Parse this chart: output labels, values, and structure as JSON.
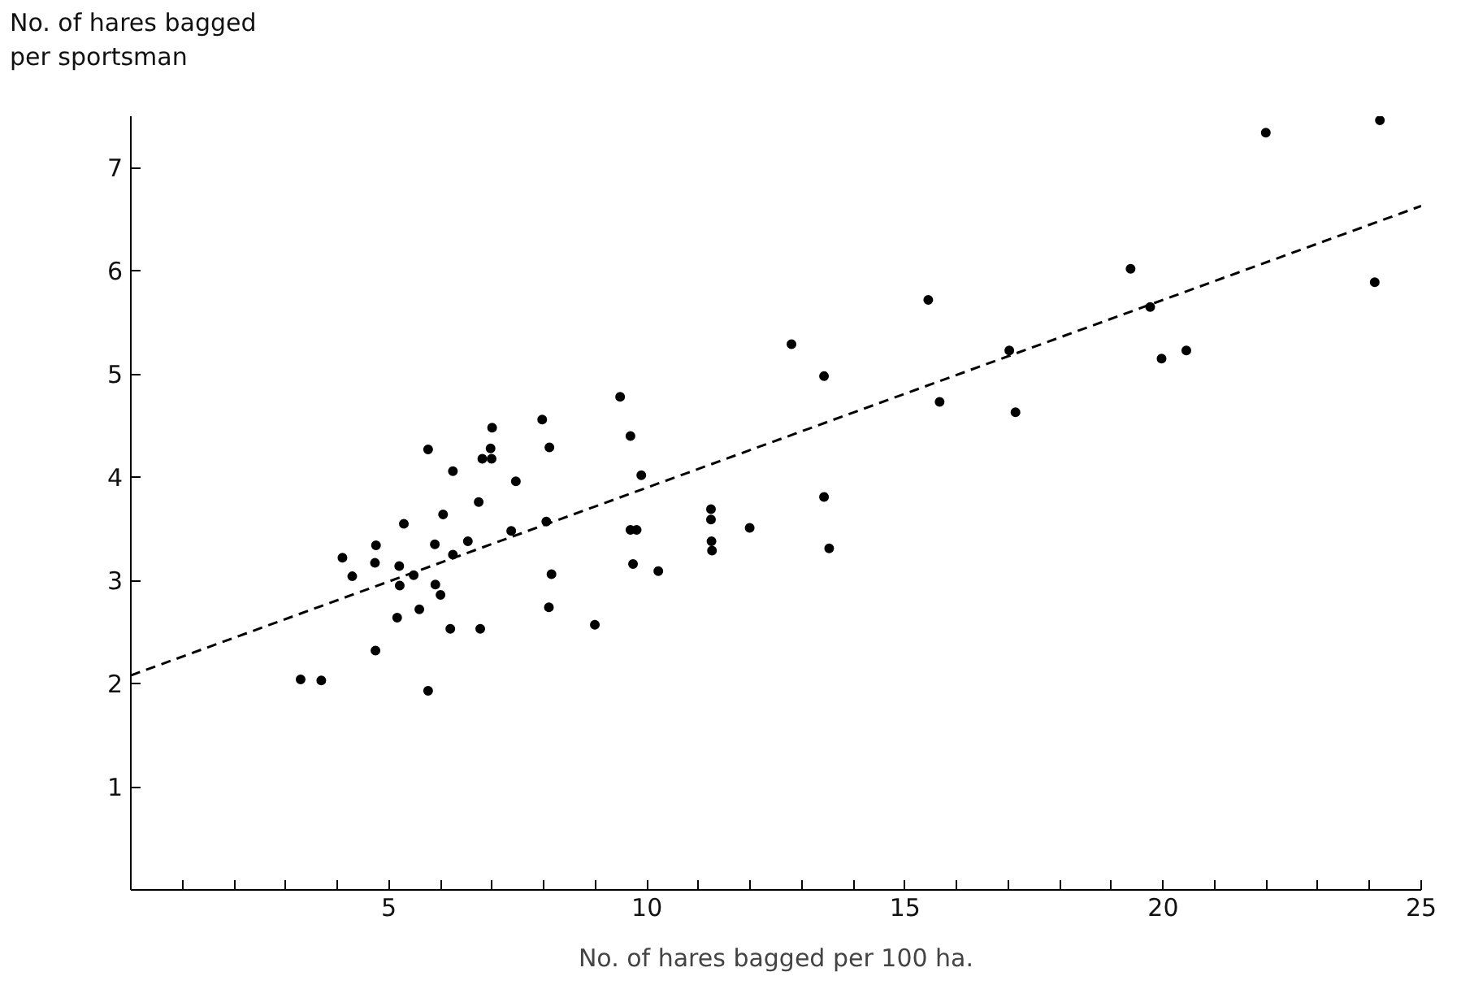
{
  "chart_data": {
    "type": "scatter",
    "xlabel": "No. of hares bagged per 100 ha.",
    "ylabel": "No. of hares bagged\nper sportsman",
    "xlim": [
      0,
      25
    ],
    "ylim": [
      0,
      7.5
    ],
    "xticks": [
      {
        "value": 1,
        "label": null
      },
      {
        "value": 2,
        "label": null
      },
      {
        "value": 3,
        "label": null
      },
      {
        "value": 4,
        "label": null
      },
      5,
      {
        "value": 6,
        "label": null
      },
      {
        "value": 7,
        "label": null
      },
      {
        "value": 8,
        "label": null
      },
      {
        "value": 9,
        "label": null
      },
      10,
      {
        "value": 11,
        "label": null
      },
      {
        "value": 12,
        "label": null
      },
      {
        "value": 13,
        "label": null
      },
      {
        "value": 14,
        "label": null
      },
      15,
      {
        "value": 16,
        "label": null
      },
      {
        "value": 17,
        "label": null
      },
      {
        "value": 18,
        "label": null
      },
      {
        "value": 19,
        "label": null
      },
      20,
      {
        "value": 21,
        "label": null
      },
      {
        "value": 22,
        "label": null
      },
      {
        "value": 23,
        "label": null
      },
      {
        "value": 24,
        "label": null
      },
      25
    ],
    "yticks": [
      1,
      2,
      3,
      4,
      5,
      6,
      7
    ],
    "grid": false,
    "legend": false,
    "series": [
      {
        "marker": "circle",
        "color": "#000000",
        "x": [
          7.97,
          7.0,
          5.76,
          6.97,
          8.11,
          6.81,
          6.99,
          6.24,
          7.46,
          6.74,
          6.05,
          5.29,
          8.05,
          7.37,
          4.75,
          5.89,
          6.53,
          4.1,
          4.73,
          6.24,
          5.2,
          4.29,
          5.48,
          5.21,
          5.9,
          8.15,
          6.0,
          5.59,
          8.1,
          5.16,
          6.19,
          6.77,
          8.99,
          4.74,
          3.29,
          3.69,
          5.76,
          12.8,
          9.48,
          13.43,
          9.68,
          9.89,
          11.24,
          11.24,
          13.43,
          9.68,
          9.8,
          11.99,
          11.25,
          11.26,
          9.73,
          10.22,
          13.53,
          21.99,
          24.2,
          19.37,
          15.45,
          24.1,
          19.75,
          17.02,
          20.45,
          19.97,
          15.67,
          17.14
        ],
        "values": [
          4.56,
          4.48,
          4.27,
          4.28,
          4.29,
          4.18,
          4.18,
          4.06,
          3.96,
          3.76,
          3.64,
          3.55,
          3.57,
          3.48,
          3.34,
          3.35,
          3.38,
          3.22,
          3.17,
          3.25,
          3.14,
          3.04,
          3.05,
          2.95,
          2.96,
          3.06,
          2.86,
          2.72,
          2.74,
          2.64,
          2.53,
          2.53,
          2.57,
          2.32,
          2.04,
          2.03,
          1.93,
          5.29,
          4.78,
          4.98,
          4.4,
          4.02,
          3.69,
          3.59,
          3.81,
          3.49,
          3.49,
          3.51,
          3.38,
          3.29,
          3.16,
          3.09,
          3.31,
          7.34,
          7.46,
          6.02,
          5.72,
          5.89,
          5.65,
          5.23,
          5.23,
          5.15,
          4.73,
          4.63
        ]
      },
      {
        "type": "line",
        "line_style": "dashed",
        "color": "#000000",
        "x": [
          0,
          25
        ],
        "values": [
          2.08,
          6.63
        ]
      }
    ]
  }
}
